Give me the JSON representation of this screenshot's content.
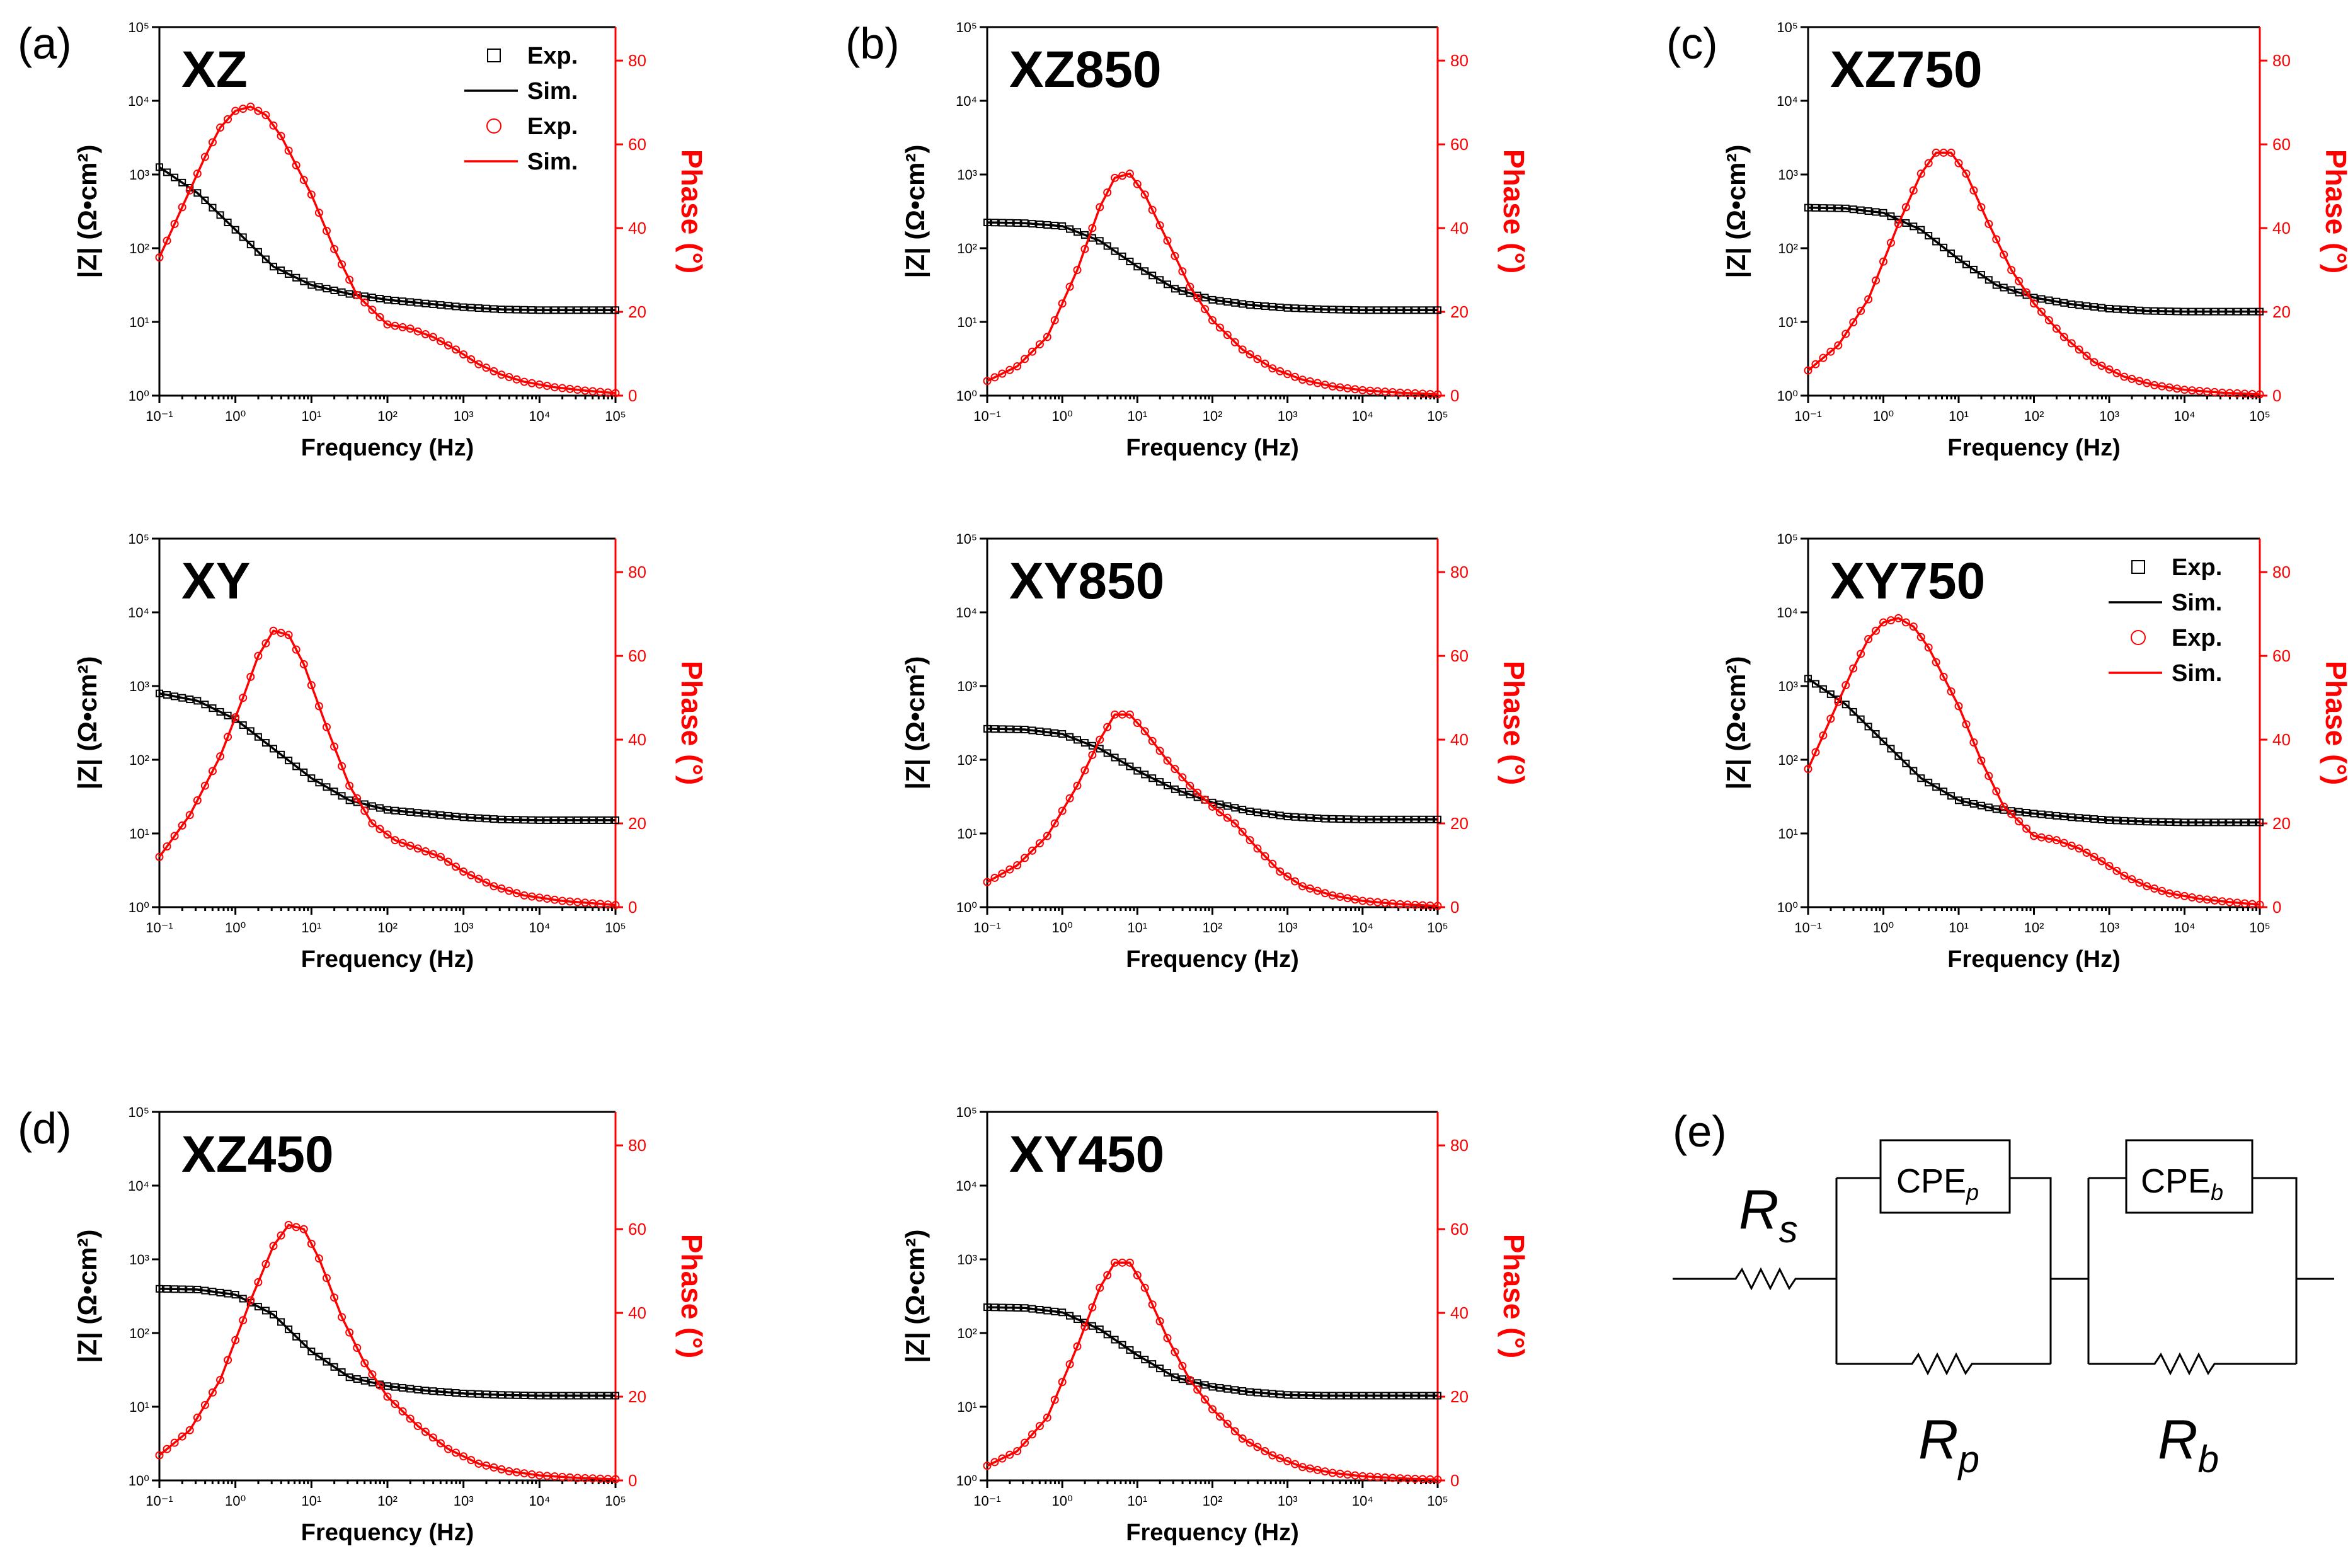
{
  "colors": {
    "impedance": "#000000",
    "phase": "#ff0000",
    "background": "#ffffff"
  },
  "legend": {
    "exp_label": "Exp.",
    "sim_label": "Sim.",
    "square_marker": "□",
    "circle_marker": "○"
  },
  "axes": {
    "xlabel": "Frequency (Hz)",
    "ylabel": "|Z| (Ω•cm²)",
    "y2label": "Phase (°)",
    "xlim_log10": [
      -1,
      5
    ],
    "ylim_log10": [
      0,
      5
    ],
    "y2lim": [
      0,
      88
    ],
    "x_tick_labels": [
      "10⁻¹",
      "10⁰",
      "10¹",
      "10²",
      "10³",
      "10⁴",
      "10⁵"
    ],
    "y_tick_labels": [
      "10⁰",
      "10¹",
      "10²",
      "10³",
      "10⁴",
      "10⁵"
    ],
    "y2_tick_labels": [
      "0",
      "20",
      "40",
      "60",
      "80"
    ]
  },
  "chart_data": [
    {
      "type": "line",
      "letter": "(a)",
      "title": "XZ",
      "legend": "top-right",
      "x_scale": "log",
      "y_scale": "log",
      "xlabel": "Frequency (Hz)",
      "ylabel": "|Z| (Ω•cm²)",
      "y2label": "Phase (°)",
      "series": [
        {
          "name": "|Z| Exp./Sim.",
          "axis": "left",
          "marker": "square",
          "x_log10": [
            -1,
            -0.5,
            0,
            0.5,
            1,
            1.5,
            2,
            2.5,
            3,
            3.5,
            4,
            4.5,
            5
          ],
          "y_log10": [
            3.1,
            2.75,
            2.25,
            1.75,
            1.5,
            1.38,
            1.3,
            1.25,
            1.2,
            1.17,
            1.16,
            1.16,
            1.16
          ]
        },
        {
          "name": "Phase Exp./Sim.",
          "axis": "right",
          "marker": "circle",
          "x_log10": [
            -1,
            -0.7,
            -0.4,
            -0.2,
            0,
            0.2,
            0.4,
            0.6,
            1,
            1.3,
            1.6,
            2,
            2.3,
            2.6,
            2.9,
            3.2,
            3.5,
            3.8,
            4.2,
            4.6,
            5
          ],
          "y": [
            33,
            45,
            57,
            64,
            68,
            69,
            67,
            62,
            48,
            35,
            24,
            17,
            16,
            14,
            11,
            7.5,
            5,
            3.3,
            2,
            1.2,
            0.6
          ]
        }
      ]
    },
    {
      "type": "line",
      "letter": "(b)",
      "title": "XZ850",
      "legend": "none",
      "x_scale": "log",
      "y_scale": "log",
      "xlabel": "Frequency (Hz)",
      "ylabel": "|Z| (Ω•cm²)",
      "y2label": "Phase (°)",
      "series": [
        {
          "name": "|Z| Exp./Sim.",
          "axis": "left",
          "marker": "square",
          "x_log10": [
            -1,
            -0.5,
            0,
            0.5,
            1,
            1.5,
            2,
            2.5,
            3,
            3.5,
            4,
            4.5,
            5
          ],
          "y_log10": [
            2.35,
            2.34,
            2.3,
            2.1,
            1.75,
            1.45,
            1.3,
            1.23,
            1.19,
            1.17,
            1.16,
            1.16,
            1.16
          ]
        },
        {
          "name": "Phase Exp./Sim.",
          "axis": "right",
          "marker": "circle",
          "x_log10": [
            -1,
            -0.6,
            -0.2,
            0.2,
            0.5,
            0.7,
            0.9,
            1.1,
            1.4,
            1.7,
            2,
            2.4,
            2.8,
            3.2,
            3.6,
            4,
            4.5,
            5
          ],
          "y": [
            3.5,
            7,
            14,
            30,
            45,
            52,
            53,
            48,
            37,
            26,
            18,
            11,
            6.5,
            3.8,
            2.2,
            1.3,
            0.7,
            0.3
          ]
        }
      ]
    },
    {
      "type": "line",
      "letter": "(c)",
      "title": "XZ750",
      "legend": "none",
      "x_scale": "log",
      "y_scale": "log",
      "xlabel": "Frequency (Hz)",
      "ylabel": "|Z| (Ω•cm²)",
      "y2label": "Phase (°)",
      "series": [
        {
          "name": "|Z| Exp./Sim.",
          "axis": "left",
          "marker": "square",
          "x_log10": [
            -1,
            -0.5,
            0,
            0.5,
            1,
            1.5,
            2,
            2.5,
            3,
            3.5,
            4,
            4.5,
            5
          ],
          "y_log10": [
            2.55,
            2.54,
            2.48,
            2.25,
            1.85,
            1.5,
            1.33,
            1.24,
            1.18,
            1.15,
            1.14,
            1.14,
            1.14
          ]
        },
        {
          "name": "Phase Exp./Sim.",
          "axis": "right",
          "marker": "circle",
          "x_log10": [
            -1,
            -0.6,
            -0.2,
            0.2,
            0.5,
            0.7,
            0.9,
            1.1,
            1.4,
            1.7,
            2,
            2.4,
            2.8,
            3.2,
            3.6,
            4,
            4.5,
            5
          ],
          "y": [
            6,
            12,
            23,
            41,
            53,
            58,
            58,
            53,
            41,
            30,
            22,
            14,
            8,
            4.5,
            2.5,
            1.4,
            0.7,
            0.3
          ]
        }
      ]
    },
    {
      "type": "line",
      "letter": "",
      "title": "XY",
      "legend": "none",
      "x_scale": "log",
      "y_scale": "log",
      "xlabel": "Frequency (Hz)",
      "ylabel": "|Z| (Ω•cm²)",
      "y2label": "Phase (°)",
      "series": [
        {
          "name": "|Z| Exp./Sim.",
          "axis": "left",
          "marker": "square",
          "x_log10": [
            -1,
            -0.5,
            0,
            0.5,
            1,
            1.5,
            2,
            2.5,
            3,
            3.5,
            4,
            4.5,
            5
          ],
          "y_log10": [
            2.9,
            2.8,
            2.55,
            2.15,
            1.75,
            1.45,
            1.32,
            1.27,
            1.22,
            1.19,
            1.18,
            1.18,
            1.18
          ]
        },
        {
          "name": "Phase Exp./Sim.",
          "axis": "right",
          "marker": "circle",
          "x_log10": [
            -1,
            -0.6,
            -0.2,
            0.1,
            0.3,
            0.5,
            0.7,
            0.9,
            1.2,
            1.5,
            1.8,
            2.1,
            2.4,
            2.7,
            3,
            3.4,
            3.8,
            4.3,
            5
          ],
          "y": [
            12,
            22,
            36,
            50,
            60,
            66,
            65,
            58,
            43,
            29,
            20,
            16,
            14,
            12,
            8.5,
            5,
            2.8,
            1.5,
            0.5
          ]
        }
      ]
    },
    {
      "type": "line",
      "letter": "",
      "title": "XY850",
      "legend": "none",
      "x_scale": "log",
      "y_scale": "log",
      "xlabel": "Frequency (Hz)",
      "ylabel": "|Z| (Ω•cm²)",
      "y2label": "Phase (°)",
      "series": [
        {
          "name": "|Z| Exp./Sim.",
          "axis": "left",
          "marker": "square",
          "x_log10": [
            -1,
            -0.5,
            0,
            0.5,
            1,
            1.5,
            2,
            2.5,
            3,
            3.5,
            4,
            4.5,
            5
          ],
          "y_log10": [
            2.42,
            2.41,
            2.35,
            2.15,
            1.85,
            1.6,
            1.42,
            1.3,
            1.23,
            1.2,
            1.19,
            1.19,
            1.19
          ]
        },
        {
          "name": "Phase Exp./Sim.",
          "axis": "right",
          "marker": "circle",
          "x_log10": [
            -1,
            -0.6,
            -0.2,
            0.2,
            0.5,
            0.7,
            0.9,
            1.1,
            1.4,
            1.7,
            2,
            2.3,
            2.6,
            2.9,
            3.2,
            3.6,
            4,
            4.5,
            5
          ],
          "y": [
            6,
            10,
            17,
            29,
            40,
            46,
            46,
            42,
            35,
            29,
            24,
            20,
            14,
            8.5,
            5,
            2.8,
            1.5,
            0.7,
            0.3
          ]
        }
      ]
    },
    {
      "type": "line",
      "letter": "",
      "title": "XY750",
      "legend": "top-right",
      "x_scale": "log",
      "y_scale": "log",
      "xlabel": "Frequency (Hz)",
      "ylabel": "|Z| (Ω•cm²)",
      "y2label": "Phase (°)",
      "series": [
        {
          "name": "|Z| Exp./Sim.",
          "axis": "left",
          "marker": "square",
          "x_log10": [
            -1,
            -0.5,
            0,
            0.5,
            1,
            1.5,
            2,
            2.5,
            3,
            3.5,
            4,
            4.5,
            5
          ],
          "y_log10": [
            3.1,
            2.75,
            2.25,
            1.75,
            1.45,
            1.33,
            1.27,
            1.22,
            1.18,
            1.16,
            1.15,
            1.15,
            1.15
          ]
        },
        {
          "name": "Phase Exp./Sim.",
          "axis": "right",
          "marker": "circle",
          "x_log10": [
            -1,
            -0.7,
            -0.4,
            -0.2,
            0,
            0.2,
            0.4,
            0.6,
            1,
            1.3,
            1.6,
            2,
            2.3,
            2.6,
            2.9,
            3.2,
            3.5,
            3.8,
            4.2,
            4.6,
            5
          ],
          "y": [
            33,
            45,
            57,
            64,
            68,
            69,
            67,
            62,
            48,
            35,
            24,
            17,
            16,
            14,
            11,
            7.5,
            5,
            3.3,
            2,
            1.2,
            0.6
          ]
        }
      ]
    },
    {
      "type": "line",
      "letter": "(d)",
      "title": "XZ450",
      "legend": "none",
      "x_scale": "log",
      "y_scale": "log",
      "xlabel": "Frequency (Hz)",
      "ylabel": "|Z| (Ω•cm²)",
      "y2label": "Phase (°)",
      "series": [
        {
          "name": "|Z| Exp./Sim.",
          "axis": "left",
          "marker": "square",
          "x_log10": [
            -1,
            -0.5,
            0,
            0.5,
            1,
            1.5,
            2,
            2.5,
            3,
            3.5,
            4,
            4.5,
            5
          ],
          "y_log10": [
            2.6,
            2.59,
            2.52,
            2.25,
            1.75,
            1.4,
            1.28,
            1.22,
            1.18,
            1.16,
            1.15,
            1.15,
            1.15
          ]
        },
        {
          "name": "Phase Exp./Sim.",
          "axis": "right",
          "marker": "circle",
          "x_log10": [
            -1,
            -0.6,
            -0.2,
            0.2,
            0.5,
            0.7,
            0.9,
            1.1,
            1.4,
            1.7,
            2,
            2.4,
            2.8,
            3.2,
            3.6,
            4,
            4.5,
            5
          ],
          "y": [
            6,
            12,
            24,
            43,
            56,
            61,
            60,
            53,
            39,
            28,
            20,
            13,
            7.5,
            4,
            2.2,
            1.2,
            0.6,
            0.3
          ]
        }
      ]
    },
    {
      "type": "line",
      "letter": "",
      "title": "XY450",
      "legend": "none",
      "x_scale": "log",
      "y_scale": "log",
      "xlabel": "Frequency (Hz)",
      "ylabel": "|Z| (Ω•cm²)",
      "y2label": "Phase (°)",
      "series": [
        {
          "name": "|Z| Exp./Sim.",
          "axis": "left",
          "marker": "square",
          "x_log10": [
            -1,
            -0.5,
            0,
            0.5,
            1,
            1.5,
            2,
            2.5,
            3,
            3.5,
            4,
            4.5,
            5
          ],
          "y_log10": [
            2.35,
            2.34,
            2.28,
            2.05,
            1.7,
            1.4,
            1.27,
            1.2,
            1.16,
            1.15,
            1.15,
            1.15,
            1.15
          ]
        },
        {
          "name": "Phase Exp./Sim.",
          "axis": "right",
          "marker": "circle",
          "x_log10": [
            -1,
            -0.6,
            -0.2,
            0.2,
            0.5,
            0.7,
            0.9,
            1.1,
            1.4,
            1.7,
            2,
            2.4,
            2.8,
            3.2,
            3.6,
            4,
            4.5,
            5
          ],
          "y": [
            3.5,
            7,
            15,
            32,
            46,
            52,
            52,
            46,
            34,
            24,
            17,
            10,
            6,
            3.2,
            1.8,
            1,
            0.5,
            0.2
          ]
        }
      ]
    }
  ],
  "circuit": {
    "letter": "(e)",
    "rs": {
      "main": "R",
      "sub": "s"
    },
    "rp": {
      "main": "R",
      "sub": "p"
    },
    "rb": {
      "main": "R",
      "sub": "b"
    },
    "cpep": {
      "main": "CPE",
      "sub": "p"
    },
    "cpeb": {
      "main": "CPE",
      "sub": "b"
    }
  }
}
